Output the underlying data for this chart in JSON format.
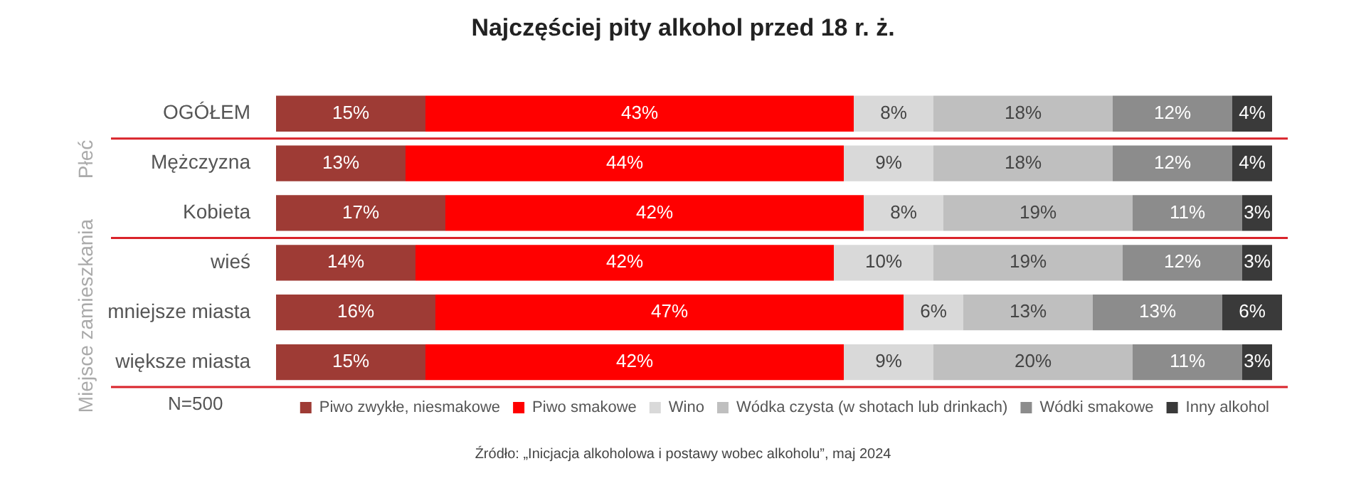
{
  "chart_data": {
    "type": "bar",
    "orientation": "horizontal",
    "stacked": true,
    "title": "Najczęściej pity alkohol przed 18 r. ż.",
    "categories": [
      "OGÓŁEM",
      "Mężczyzna",
      "Kobieta",
      "wieś",
      "mniejsze miasta",
      "większe miasta"
    ],
    "series": [
      {
        "name": "Piwo zwykłe, niesmakowe",
        "color": "#9e3b35",
        "values": [
          15,
          13,
          17,
          14,
          16,
          15
        ],
        "value_labels": [
          "15%",
          "13%",
          "17%",
          "14%",
          "16%",
          "15%"
        ]
      },
      {
        "name": "Piwo smakowe",
        "color": "#ff0000",
        "values": [
          43,
          44,
          42,
          42,
          47,
          42
        ],
        "value_labels": [
          "43%",
          "44%",
          "42%",
          "42%",
          "47%",
          "42%"
        ]
      },
      {
        "name": "Wino",
        "color": "#d9d9d9",
        "values": [
          8,
          9,
          8,
          10,
          6,
          9
        ],
        "value_labels": [
          "8%",
          "9%",
          "8%",
          "10%",
          "6%",
          "9%"
        ]
      },
      {
        "name": "Wódka czysta (w shotach lub drinkach)",
        "color": "#bfbfbf",
        "values": [
          18,
          18,
          19,
          19,
          13,
          20
        ],
        "value_labels": [
          "18%",
          "18%",
          "19%",
          "19%",
          "13%",
          "20%"
        ]
      },
      {
        "name": "Wódki smakowe",
        "color": "#8c8c8c",
        "values": [
          12,
          12,
          11,
          12,
          13,
          11
        ],
        "value_labels": [
          "12%",
          "12%",
          "11%",
          "12%",
          "13%",
          "11%"
        ]
      },
      {
        "name": "Inny alkohol",
        "color": "#3a3a3a",
        "values": [
          4,
          4,
          3,
          3,
          6,
          3
        ],
        "value_labels": [
          "4%",
          "4%",
          "3%",
          "3%",
          "6%",
          "3%"
        ]
      }
    ],
    "legend": "bottom",
    "annotations": [
      "Płeć",
      "Miejsce zamieszkania",
      "N=500",
      "Źródło: „Inicjacja alkoholowa i postawy wobec alkoholu”, maj 2024"
    ]
  }
}
